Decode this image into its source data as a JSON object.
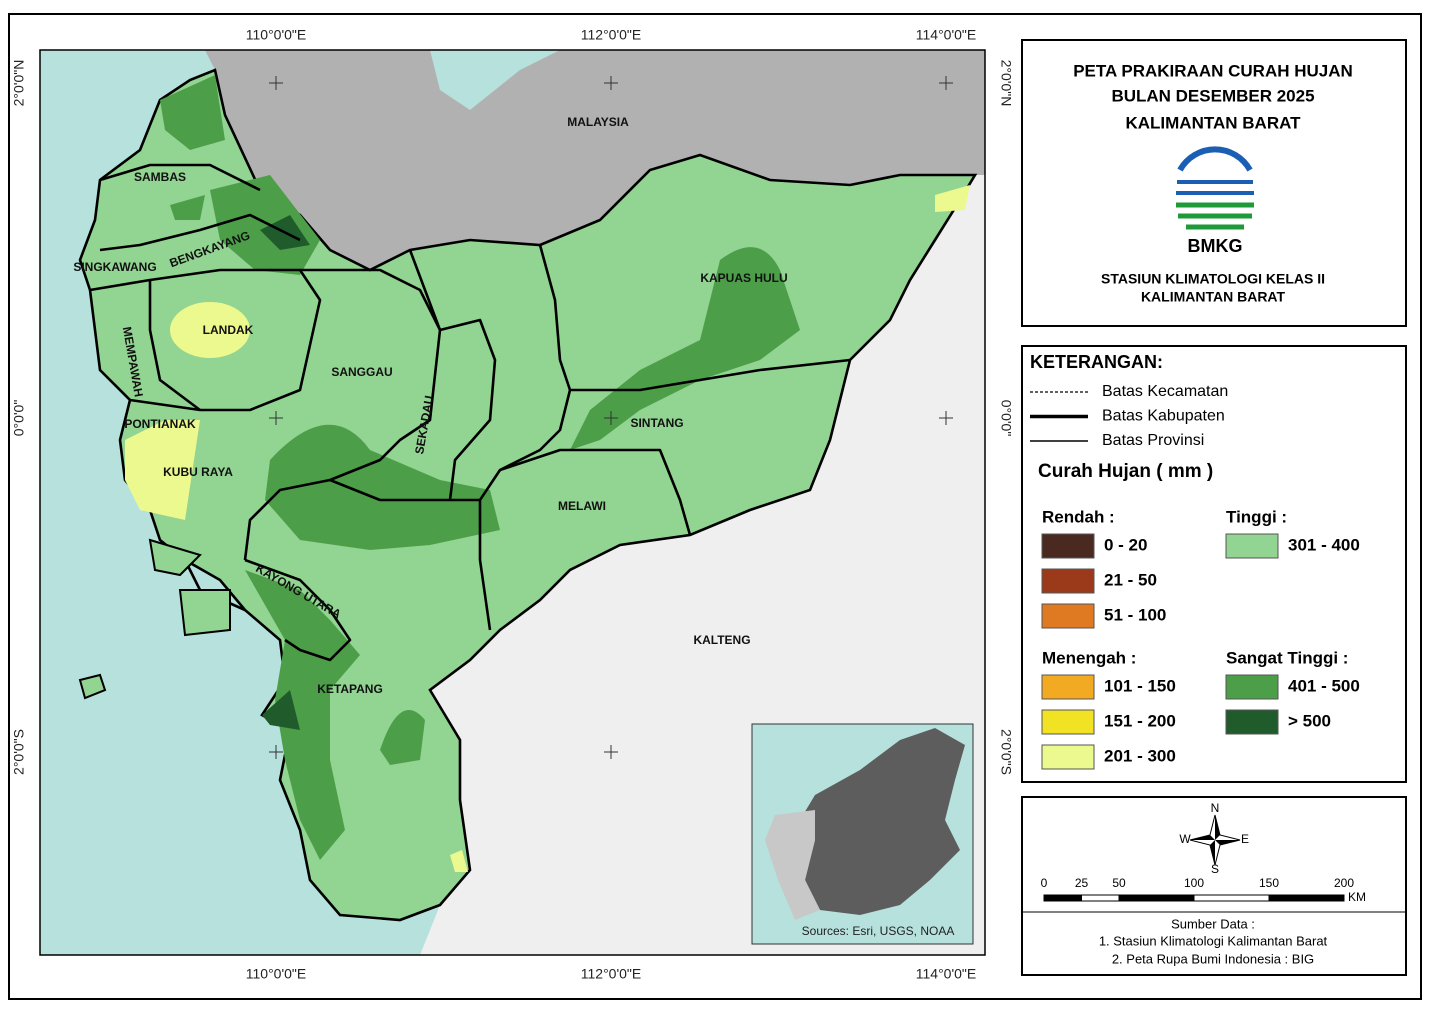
{
  "map": {
    "coords_top": [
      "110°0'0\"E",
      "112°0'0\"E",
      "114°0'0\"E"
    ],
    "coords_bottom": [
      "110°0'0\"E",
      "112°0'0\"E",
      "114°0'0\"E"
    ],
    "coords_left": [
      "2°0'0\"N",
      "0°0'0\"",
      "2°0'0\"S"
    ],
    "coords_right": [
      "2°0'0\"N",
      "0°0'0\"",
      "2°0'0\"S"
    ],
    "regions": [
      "MALAYSIA",
      "SAMBAS",
      "SINGKAWANG",
      "BENGKAYANG",
      "LANDAK",
      "MEMPAWAH",
      "PONTIANAK",
      "KUBU RAYA",
      "SANGGAU",
      "SEKADAU",
      "KAPUAS HULU",
      "SINTANG",
      "MELAWI",
      "KAYONG UTARA",
      "KETAPANG",
      "KALTENG"
    ],
    "inset_source": "Sources: Esri, USGS, NOAA"
  },
  "header": {
    "title": [
      "PETA PRAKIRAAN CURAH HUJAN",
      "BULAN DESEMBER 2025",
      "KALIMANTAN BARAT"
    ],
    "logo_text": "BMKG",
    "station": [
      "STASIUN KLIMATOLOGI KELAS II",
      "KALIMANTAN BARAT"
    ]
  },
  "legend": {
    "heading": "KETERANGAN:",
    "lines": [
      {
        "label": "Batas Kecamatan",
        "style": "dotted"
      },
      {
        "label": "Batas Kabupaten",
        "style": "thick"
      },
      {
        "label": "Batas Provinsi",
        "style": "thin"
      }
    ],
    "rain_title": "Curah Hujan ( mm )",
    "groups": [
      {
        "name": "Rendah :",
        "classes": [
          {
            "label": "0 - 20",
            "color": "#4a2a20"
          },
          {
            "label": "21 - 50",
            "color": "#9b3a1a"
          },
          {
            "label": "51 - 100",
            "color": "#e07a22"
          }
        ]
      },
      {
        "name": "Tinggi :",
        "classes": [
          {
            "label": "301 - 400",
            "color": "#92d492"
          }
        ]
      },
      {
        "name": "Menengah :",
        "classes": [
          {
            "label": "101 - 150",
            "color": "#f2aa22"
          },
          {
            "label": "151 - 200",
            "color": "#f2e224"
          },
          {
            "label": "201 - 300",
            "color": "#ecf98e"
          }
        ]
      },
      {
        "name": "Sangat Tinggi :",
        "classes": [
          {
            "label": "401 - 500",
            "color": "#4d9e49"
          },
          {
            "label": "> 500",
            "color": "#1f5b2b"
          }
        ]
      }
    ]
  },
  "scale": {
    "compass": [
      "N",
      "W",
      "E",
      "S"
    ],
    "ticks": [
      0,
      25,
      50,
      100,
      150,
      200
    ],
    "unit": "KM"
  },
  "sources": {
    "heading": "Sumber Data :",
    "items": [
      "1. Stasiun Klimatologi Kalimantan Barat",
      "2. Peta Rupa Bumi Indonesia : BIG"
    ]
  }
}
